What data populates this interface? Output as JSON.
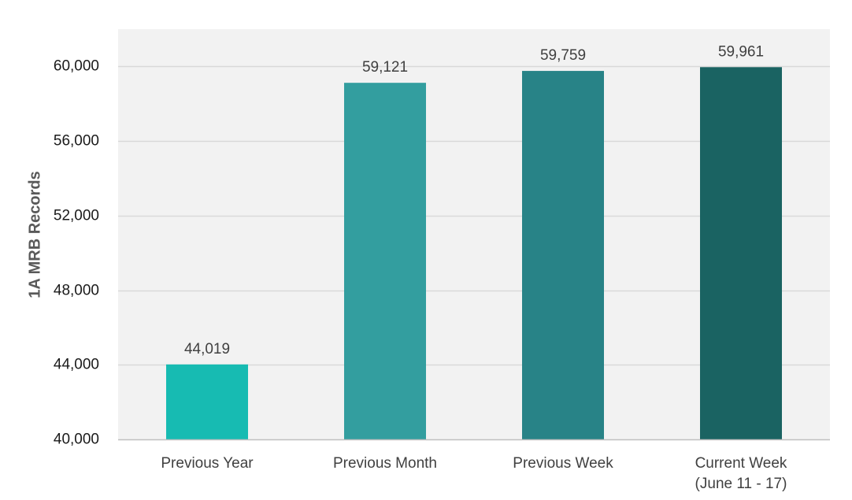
{
  "chart_data": {
    "type": "bar",
    "title": "",
    "xlabel": "",
    "ylabel": "1A MRB Records",
    "categories": [
      [
        "Previous Year"
      ],
      [
        "Previous Month"
      ],
      [
        "Previous Week"
      ],
      [
        "Current Week",
        "(June 11 - 17)"
      ]
    ],
    "values": [
      44019,
      59121,
      59759,
      59961
    ],
    "value_labels": [
      "44,019",
      "59,121",
      "59,759",
      "59,961"
    ],
    "ylim": [
      40000,
      62000
    ],
    "yticks": [
      40000,
      44000,
      48000,
      52000,
      56000,
      60000
    ],
    "ytick_labels": [
      "40,000",
      "44,000",
      "48,000",
      "52,000",
      "56,000",
      "60,000"
    ],
    "bar_colors": [
      "#17bbb2",
      "#339e9f",
      "#288387",
      "#1a6362"
    ],
    "plot_background": "#f2f2f2",
    "gridline_color": "#d9d9d9",
    "grid": true,
    "legend": "none"
  }
}
